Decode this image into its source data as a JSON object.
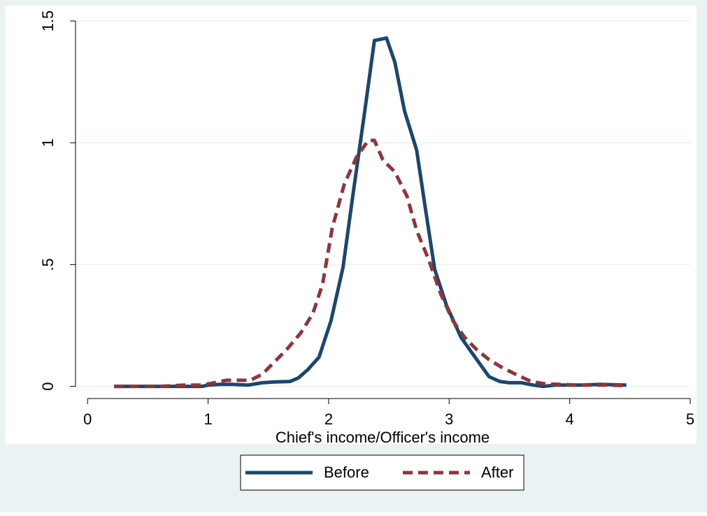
{
  "colors": {
    "outer_background": "#eaf2f3",
    "plot_background": "#ffffff",
    "grid": "#eaf2f3",
    "axis": "#000000",
    "before": "#1a476f",
    "after": "#90353b"
  },
  "chart_data": {
    "type": "line",
    "title": "",
    "xlabel": "Chief's income/Officer's income",
    "ylabel": "",
    "xlim": [
      -0.1,
      5.0
    ],
    "ylim": [
      -0.05,
      1.5
    ],
    "xticks": [
      0,
      1,
      2,
      3,
      4,
      5
    ],
    "xtick_labels": [
      "0",
      "1",
      "2",
      "3",
      "4",
      "5"
    ],
    "yticks": [
      0,
      0.5,
      1,
      1.5
    ],
    "ytick_labels": [
      "0",
      ".5",
      "1",
      "1.5"
    ],
    "grid": true,
    "legend_position": "bottom",
    "series": [
      {
        "name": "Before",
        "style": "solid",
        "color": "#1a476f",
        "x": [
          0.22,
          0.4,
          0.6,
          0.8,
          0.95,
          1.0,
          1.1,
          1.2,
          1.33,
          1.45,
          1.55,
          1.68,
          1.75,
          1.83,
          1.92,
          2.02,
          2.12,
          2.2,
          2.3,
          2.38,
          2.48,
          2.55,
          2.63,
          2.73,
          2.8,
          2.88,
          2.98,
          3.1,
          3.2,
          3.33,
          3.42,
          3.5,
          3.6,
          3.7,
          3.78,
          3.88,
          3.98,
          4.1,
          4.25,
          4.47
        ],
        "y": [
          0.0,
          0.0,
          0.0,
          0.0,
          0.0,
          0.005,
          0.008,
          0.008,
          0.005,
          0.015,
          0.018,
          0.02,
          0.035,
          0.07,
          0.12,
          0.27,
          0.49,
          0.78,
          1.13,
          1.42,
          1.43,
          1.33,
          1.13,
          0.97,
          0.74,
          0.48,
          0.33,
          0.2,
          0.13,
          0.04,
          0.02,
          0.015,
          0.015,
          0.005,
          0.0,
          0.005,
          0.005,
          0.005,
          0.008,
          0.005
        ]
      },
      {
        "name": "After",
        "style": "dashed",
        "color": "#90353b",
        "x": [
          0.22,
          0.4,
          0.6,
          0.8,
          0.95,
          1.05,
          1.15,
          1.25,
          1.35,
          1.45,
          1.55,
          1.65,
          1.77,
          1.87,
          1.95,
          2.03,
          2.13,
          2.23,
          2.33,
          2.38,
          2.45,
          2.55,
          2.65,
          2.73,
          2.83,
          2.93,
          3.03,
          3.13,
          3.23,
          3.33,
          3.43,
          3.55,
          3.68,
          3.8,
          3.93,
          4.05,
          4.15,
          4.3,
          4.47
        ],
        "y": [
          0.0,
          0.0,
          0.0,
          0.005,
          0.005,
          0.015,
          0.025,
          0.025,
          0.025,
          0.05,
          0.1,
          0.15,
          0.22,
          0.3,
          0.42,
          0.65,
          0.83,
          0.94,
          1.01,
          1.01,
          0.93,
          0.88,
          0.78,
          0.64,
          0.52,
          0.38,
          0.27,
          0.2,
          0.15,
          0.11,
          0.08,
          0.05,
          0.02,
          0.01,
          0.008,
          0.005,
          0.005,
          0.005,
          0.003
        ]
      }
    ]
  }
}
